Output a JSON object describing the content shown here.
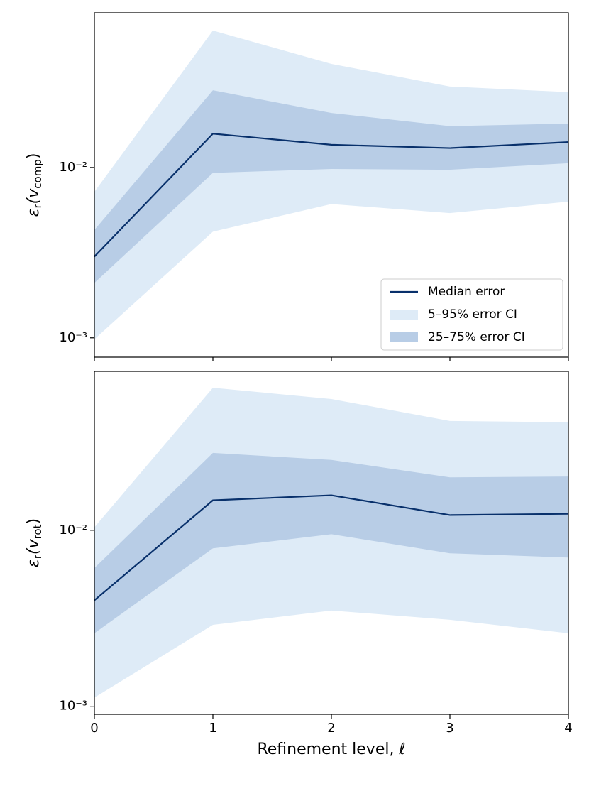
{
  "chart_data": [
    {
      "type": "line",
      "log_y": true,
      "ylabel": [
        {
          "text": "ε",
          "sub": false
        },
        {
          "text": "r",
          "sub": true
        },
        {
          "text": "(v",
          "sub": false
        },
        {
          "text": "comp",
          "sub": true
        },
        {
          "text": ")",
          "sub": false
        }
      ],
      "x": [
        0,
        1,
        2,
        3,
        4
      ],
      "xlim": [
        0,
        4
      ],
      "xticks": [
        0,
        1,
        2,
        3,
        4
      ],
      "show_xticklabels": false,
      "ylim": [
        0.00077,
        0.081
      ],
      "yticks": [
        {
          "value": 0.001,
          "label": "10⁻³"
        },
        {
          "value": 0.01,
          "label": "10⁻²"
        }
      ],
      "legend": "lower right",
      "series": [
        {
          "name": "Median error",
          "type": "line",
          "color": "#08306b",
          "values": [
            0.003,
            0.0158,
            0.0136,
            0.013,
            0.0141
          ]
        },
        {
          "name": "5–95% error CI",
          "type": "band",
          "color": "#deebf7",
          "lower": [
            0.00098,
            0.0042,
            0.0061,
            0.0054,
            0.0063
          ],
          "upper": [
            0.0072,
            0.0637,
            0.0406,
            0.0299,
            0.0277
          ]
        },
        {
          "name": "25–75% error CI",
          "type": "band",
          "color": "#b8cde6",
          "lower": [
            0.0021,
            0.0093,
            0.0098,
            0.0097,
            0.0106
          ],
          "upper": [
            0.0043,
            0.0284,
            0.0209,
            0.0175,
            0.0181
          ]
        }
      ]
    },
    {
      "type": "line",
      "log_y": true,
      "ylabel": [
        {
          "text": "ε",
          "sub": false
        },
        {
          "text": "r",
          "sub": true
        },
        {
          "text": "(v",
          "sub": false
        },
        {
          "text": "rot",
          "sub": true
        },
        {
          "text": ")",
          "sub": false
        }
      ],
      "xlabel": "Refinement level, ℓ",
      "x": [
        0,
        1,
        2,
        3,
        4
      ],
      "xlim": [
        0,
        4
      ],
      "xticks": [
        0,
        1,
        2,
        3,
        4
      ],
      "show_xticklabels": true,
      "ylim": [
        0.0009,
        0.08
      ],
      "yticks": [
        {
          "value": 0.001,
          "label": "10⁻³"
        },
        {
          "value": 0.01,
          "label": "10⁻²"
        }
      ],
      "series": [
        {
          "name": "Median error",
          "type": "line",
          "color": "#08306b",
          "values": [
            0.004,
            0.0148,
            0.0158,
            0.0122,
            0.0124
          ]
        },
        {
          "name": "5–95% error CI",
          "type": "band",
          "color": "#deebf7",
          "lower": [
            0.00112,
            0.0029,
            0.0035,
            0.0031,
            0.0026
          ],
          "upper": [
            0.0104,
            0.0645,
            0.0557,
            0.0418,
            0.0411
          ]
        },
        {
          "name": "25–75% error CI",
          "type": "band",
          "color": "#b8cde6",
          "lower": [
            0.0026,
            0.0079,
            0.0095,
            0.0074,
            0.007
          ],
          "upper": [
            0.0061,
            0.0275,
            0.0251,
            0.02,
            0.0202
          ]
        }
      ]
    }
  ]
}
